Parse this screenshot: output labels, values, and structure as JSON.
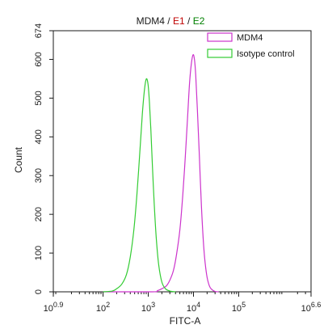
{
  "chart_data": {
    "type": "line",
    "title": {
      "parts": [
        {
          "text": "MDM4",
          "color": "#1a1a1a"
        },
        {
          "text": " / ",
          "color": "#1a1a1a"
        },
        {
          "text": "E1",
          "color": "#c00000"
        },
        {
          "text": " / ",
          "color": "#1a1a1a"
        },
        {
          "text": "E2",
          "color": "#008000"
        }
      ]
    },
    "xlabel": "FITC-A",
    "ylabel": "Count",
    "x_scale": "log10",
    "xlim_exp": [
      0.9,
      6.6
    ],
    "ylim": [
      0,
      674
    ],
    "x_ticks": [
      {
        "exp": 0.9,
        "base": "10",
        "sup": "0.9"
      },
      {
        "exp": 2,
        "base": "10",
        "sup": "2"
      },
      {
        "exp": 3,
        "base": "10",
        "sup": "3"
      },
      {
        "exp": 4,
        "base": "10",
        "sup": "4"
      },
      {
        "exp": 5,
        "base": "10",
        "sup": "5"
      },
      {
        "exp": 6.6,
        "base": "10",
        "sup": "6.6"
      }
    ],
    "y_ticks": [
      0,
      100,
      200,
      300,
      400,
      500,
      600,
      674
    ],
    "grid": false,
    "legend_position": "top-right",
    "series": [
      {
        "name": "MDM4",
        "color": "#cc33cc",
        "x": [
          100,
          1200,
          1600,
          2000,
          2500,
          3000,
          3600,
          4200,
          5000,
          5800,
          6600,
          7400,
          8200,
          9000,
          9800,
          10500,
          11200,
          12200,
          13500,
          15000,
          17000,
          19500,
          22500,
          26000,
          30000,
          36000
        ],
        "values": [
          0,
          0,
          3,
          8,
          15,
          30,
          55,
          95,
          160,
          250,
          350,
          450,
          540,
          590,
          612,
          600,
          560,
          470,
          350,
          220,
          110,
          45,
          15,
          5,
          1,
          0
        ]
      },
      {
        "name": "Isotype control",
        "color": "#33cc33",
        "x": [
          100,
          160,
          200,
          260,
          330,
          400,
          480,
          560,
          650,
          740,
          830,
          910,
          990,
          1060,
          1140,
          1230,
          1350,
          1500,
          1700,
          2000,
          2400,
          3000,
          4000
        ],
        "values": [
          0,
          2,
          8,
          20,
          45,
          90,
          160,
          250,
          360,
          460,
          525,
          550,
          535,
          490,
          420,
          330,
          230,
          140,
          70,
          25,
          8,
          2,
          0
        ]
      }
    ]
  }
}
